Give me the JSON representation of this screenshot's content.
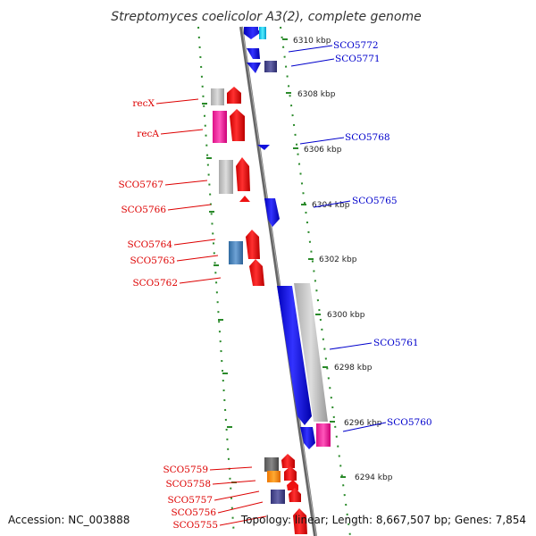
{
  "title": "Streptomyces coelicolor A3(2), complete genome",
  "footer": {
    "accession": "Accession: NC_003888",
    "topology": "Topology: linear; Length: 8,667,507 bp; Genes: 7,854"
  },
  "colors": {
    "backbone": "#888888",
    "left_labels": "#dd0000",
    "right_labels": "#0000cc",
    "dots": "#2a8a2a"
  },
  "kbp_labels": [
    "6310 kbp",
    "6308 kbp",
    "6306 kbp",
    "6304 kbp",
    "6302 kbp",
    "6300 kbp",
    "6298 kbp",
    "6296 kbp",
    "6294 kbp"
  ],
  "left_genes": [
    "recX",
    "recA",
    "SCO5767",
    "SCO5766",
    "SCO5764",
    "SCO5763",
    "SCO5762",
    "SCO5759",
    "SCO5758",
    "SCO5757",
    "SCO5756",
    "SCO5755"
  ],
  "right_genes": [
    "SCO5772",
    "SCO5771",
    "SCO5768",
    "SCO5765",
    "SCO5761",
    "SCO5760"
  ]
}
